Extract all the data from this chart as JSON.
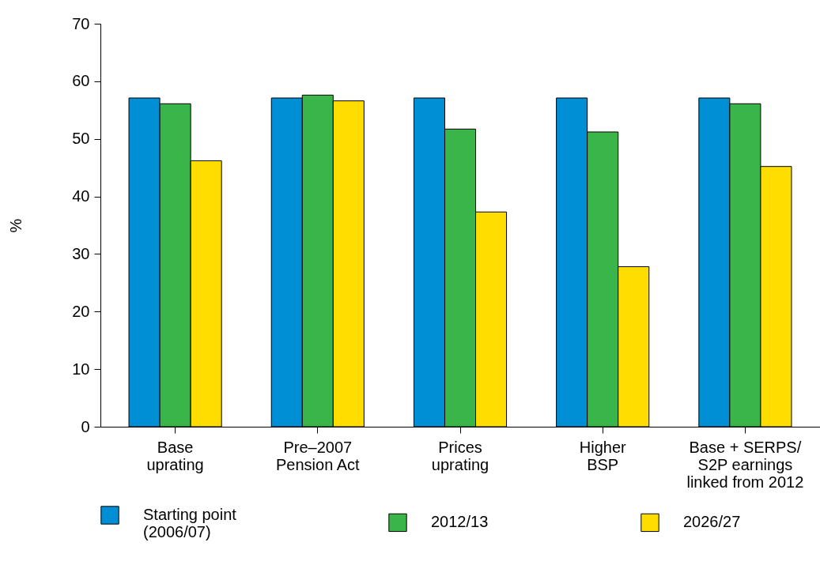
{
  "chart_data": {
    "type": "bar",
    "ylabel": "%",
    "categories": [
      "Base\nuprating",
      "Pre–2007\nPension Act",
      "Prices\nuprating",
      "Higher\nBSP",
      "Base + SERPS/\nS2P earnings\nlinked from 2012"
    ],
    "series": [
      {
        "name": "Starting point\n(2006/07)",
        "color": "#008fd5",
        "values": [
          57.1,
          57.1,
          57.1,
          57.1,
          57.1
        ]
      },
      {
        "name": "2012/13",
        "color": "#3ab54a",
        "values": [
          56.1,
          57.6,
          51.7,
          51.2,
          56.1
        ]
      },
      {
        "name": "2026/27",
        "color": "#ffdd00",
        "values": [
          46.2,
          56.6,
          37.3,
          27.8,
          45.2
        ]
      }
    ],
    "ylim": [
      0,
      70
    ],
    "yticks": [
      0,
      10,
      20,
      30,
      40,
      50,
      60,
      70
    ],
    "grid": false,
    "legend": "bottom"
  }
}
